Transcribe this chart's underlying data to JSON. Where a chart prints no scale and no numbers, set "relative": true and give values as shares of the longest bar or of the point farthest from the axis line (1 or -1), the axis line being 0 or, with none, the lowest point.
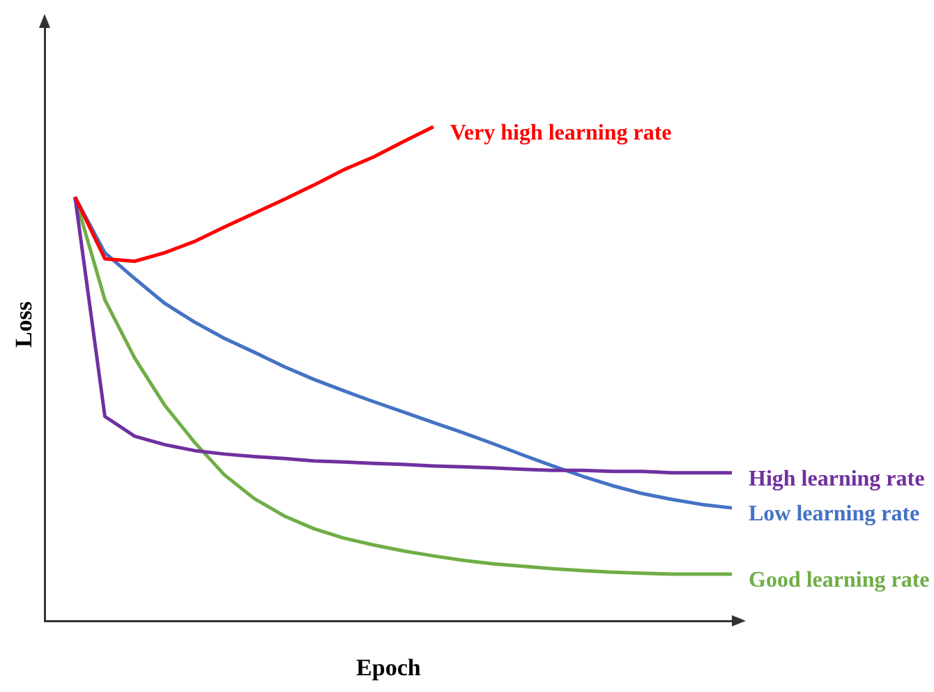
{
  "chart_data": {
    "type": "line",
    "relative": true,
    "xlabel": "Epoch",
    "ylabel": "Loss",
    "grid": false,
    "legend": false,
    "marker": "none",
    "line_style": "solid",
    "categories": [
      null,
      null,
      null,
      null,
      null,
      null,
      null,
      null,
      null,
      null,
      null,
      null,
      null,
      null,
      null,
      null,
      null,
      null,
      null,
      null,
      null,
      null,
      null,
      null
    ],
    "series": [
      {
        "name": "Very high learning rate",
        "color": "#ff0000",
        "values": [
          null,
          0.858,
          0.733,
          0.728,
          0.745,
          0.768,
          0.797,
          0.825,
          0.853,
          0.882,
          0.913,
          0.939,
          0.97,
          1,
          null,
          null,
          null,
          null,
          null,
          null,
          null,
          null,
          null,
          null
        ]
      },
      {
        "name": "High learning rate",
        "color": "#7030a0",
        "values": [
          null,
          0.858,
          0.414,
          0.374,
          0.357,
          0.345,
          0.338,
          0.333,
          0.329,
          0.324,
          0.322,
          0.319,
          0.317,
          0.314,
          0.312,
          0.31,
          0.307,
          0.305,
          0.305,
          0.303,
          0.303,
          0.3,
          0.3,
          0.3
        ]
      },
      {
        "name": "Low learning rate",
        "color": "#4472c4",
        "values": [
          null,
          0.858,
          0.745,
          0.693,
          0.643,
          0.605,
          0.572,
          0.544,
          0.515,
          0.489,
          0.466,
          0.444,
          0.423,
          0.402,
          0.381,
          0.359,
          0.336,
          0.314,
          0.293,
          0.274,
          0.258,
          0.246,
          0.236,
          0.229
        ]
      },
      {
        "name": "Good learning rate",
        "color": "#70ad47",
        "values": [
          null,
          0.858,
          0.65,
          0.532,
          0.437,
          0.362,
          0.296,
          0.248,
          0.213,
          0.187,
          0.168,
          0.154,
          0.142,
          0.132,
          0.123,
          0.116,
          0.111,
          0.106,
          0.102,
          0.099,
          0.097,
          0.095,
          0.095,
          0.095
        ]
      }
    ]
  }
}
